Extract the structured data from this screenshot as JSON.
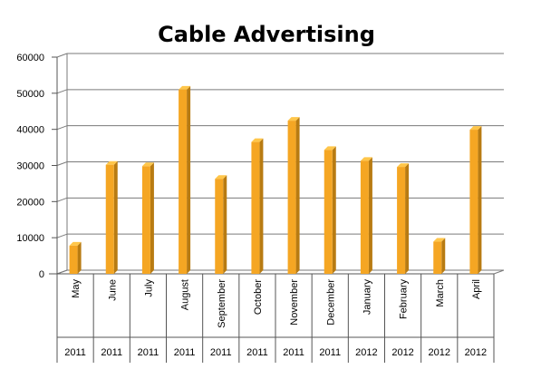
{
  "chart_data": {
    "type": "bar",
    "title": "Cable Advertising",
    "xlabel": "",
    "ylabel": "",
    "ylim": [
      0,
      60000
    ],
    "yticks": [
      0,
      10000,
      20000,
      30000,
      40000,
      50000,
      60000
    ],
    "categories": [
      "May",
      "June",
      "July",
      "August",
      "September",
      "October",
      "November",
      "December",
      "January",
      "February",
      "March",
      "April"
    ],
    "years": [
      "2011",
      "2011",
      "2011",
      "2011",
      "2011",
      "2011",
      "2011",
      "2011",
      "2012",
      "2012",
      "2012",
      "2012"
    ],
    "values": [
      7800,
      30200,
      29800,
      51000,
      26300,
      36500,
      42400,
      34300,
      31300,
      29600,
      8900,
      39900
    ],
    "grid": true,
    "legend": "none",
    "colors": {
      "bar_front": "#F5A623",
      "bar_side": "#B87B12",
      "bar_top": "#FFC64A",
      "grid": "#7a7a7a"
    }
  }
}
